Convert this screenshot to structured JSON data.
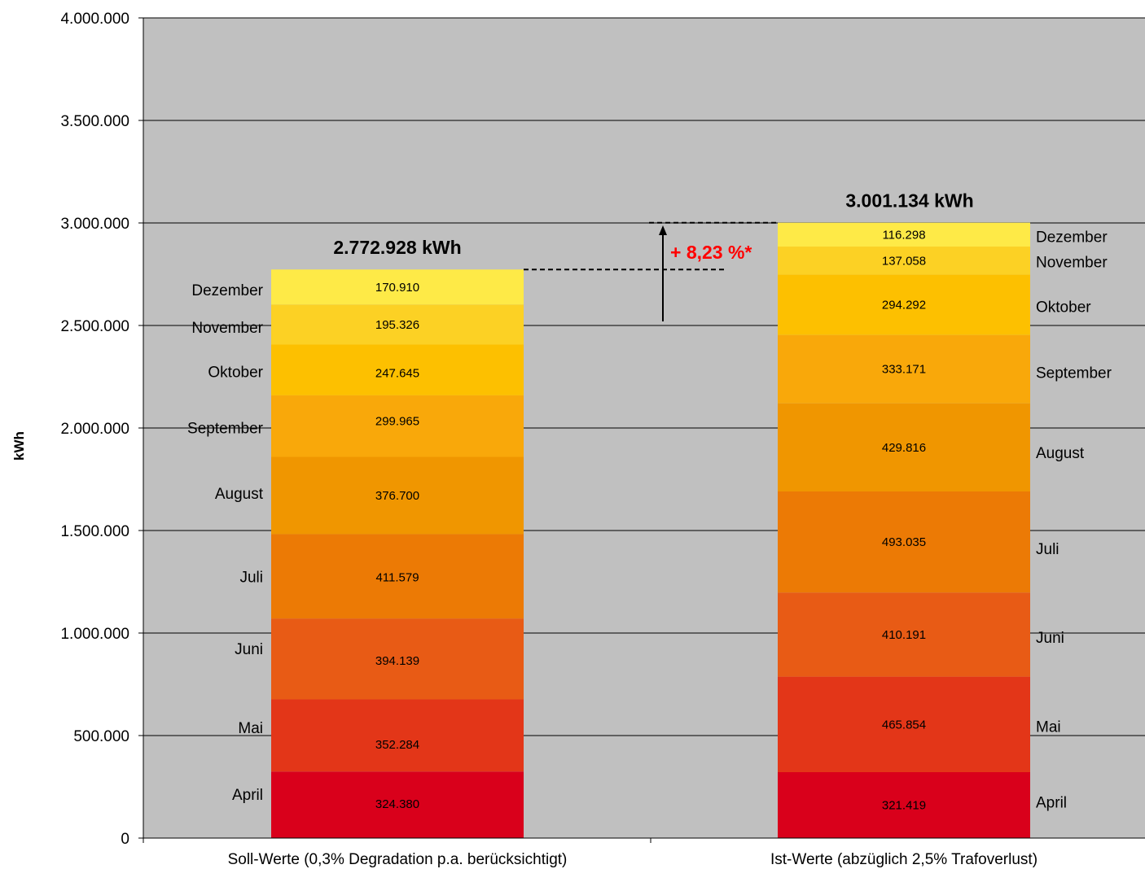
{
  "chart_data": {
    "type": "bar",
    "stacked": true,
    "ylabel": "kWh",
    "xlabel": "",
    "ylim": [
      0,
      4000000
    ],
    "ytick_step": 500000,
    "ytick_labels": [
      "0",
      "500.000",
      "1.000.000",
      "1.500.000",
      "2.000.000",
      "2.500.000",
      "3.000.000",
      "3.500.000",
      "4.000.000"
    ],
    "grid": true,
    "categories": [
      "Soll-Werte (0,3% Degradation p.a. berücksichtigt)",
      "Ist-Werte (abzüglich 2,5% Trafoverlust)"
    ],
    "totals": [
      2772928,
      3001134
    ],
    "total_labels": [
      "2.772.928 kWh",
      "3.001.134 kWh"
    ],
    "annotation": "+ 8,23 %*",
    "series": [
      {
        "name": "April",
        "values": [
          324380,
          321419
        ],
        "labels": [
          "324.380",
          "321.419"
        ],
        "color": "#d9001b"
      },
      {
        "name": "Mai",
        "values": [
          352284,
          465854
        ],
        "labels": [
          "352.284",
          "465.854"
        ],
        "color": "#e33618"
      },
      {
        "name": "Juni",
        "values": [
          394139,
          410191
        ],
        "labels": [
          "394.139",
          "410.191"
        ],
        "color": "#e85b15"
      },
      {
        "name": "Juli",
        "values": [
          411579,
          493035
        ],
        "labels": [
          "411.579",
          "493.035"
        ],
        "color": "#ec7a05"
      },
      {
        "name": "August",
        "values": [
          376700,
          429816
        ],
        "labels": [
          "376.700",
          "429.816"
        ],
        "color": "#f09600"
      },
      {
        "name": "September",
        "values": [
          299965,
          333171
        ],
        "labels": [
          "299.965",
          "333.171"
        ],
        "color": "#f9a80a"
      },
      {
        "name": "Oktober",
        "values": [
          247645,
          294292
        ],
        "labels": [
          "247.645",
          "294.292"
        ],
        "color": "#fdc000"
      },
      {
        "name": "November",
        "values": [
          195326,
          137058
        ],
        "labels": [
          "195.326",
          "137.058"
        ],
        "color": "#fcd124"
      },
      {
        "name": "Dezember",
        "values": [
          170910,
          116298
        ],
        "labels": [
          "170.910",
          "116.298"
        ],
        "color": "#feea47"
      }
    ],
    "colors": {
      "plot_background": "#c0c0c0",
      "gridline": "#000000",
      "annotation": "#ff0000"
    }
  }
}
